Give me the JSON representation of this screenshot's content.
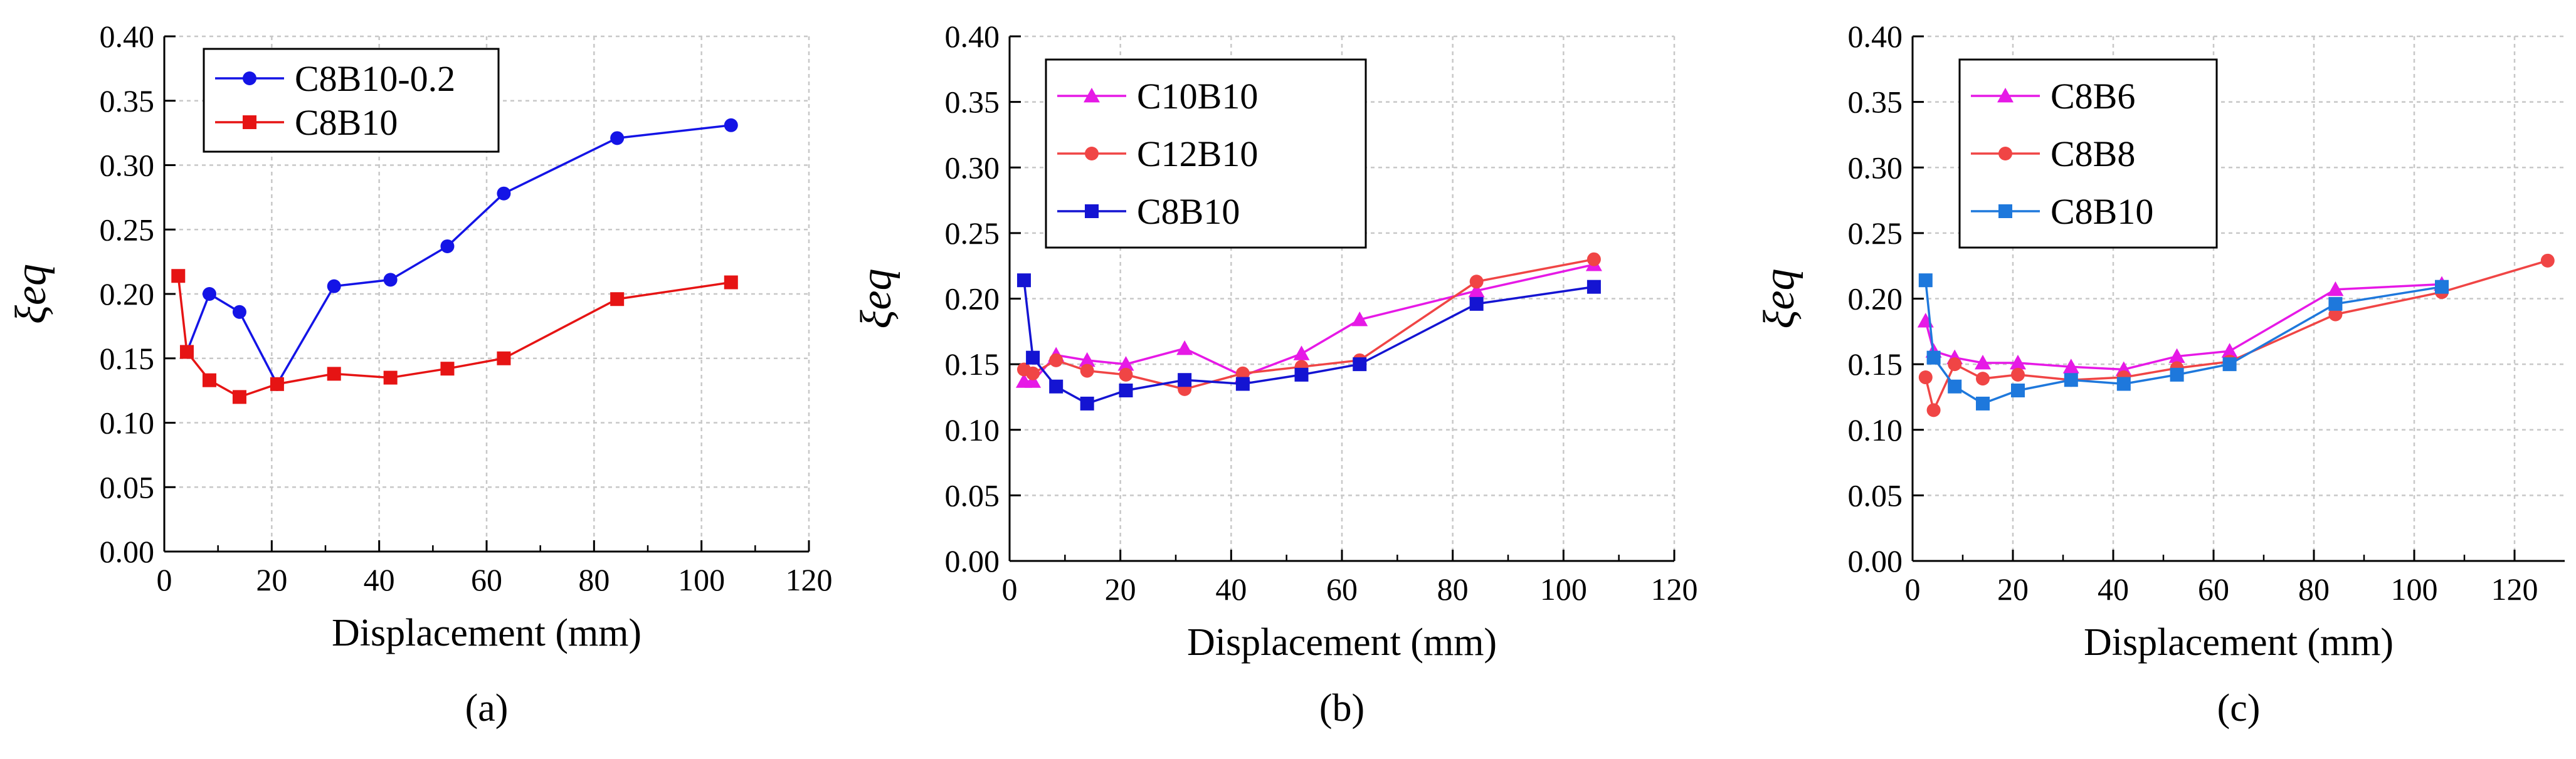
{
  "chart_data": [
    {
      "type": "line",
      "panel_label": "(a)",
      "xlabel": "Displacement (mm)",
      "ylabel": "ξeq",
      "xlim": [
        0,
        120
      ],
      "ylim": [
        0,
        0.4
      ],
      "x_ticks": [
        0,
        20,
        40,
        60,
        80,
        100,
        120
      ],
      "y_ticks": [
        0.0,
        0.05,
        0.1,
        0.15,
        0.2,
        0.25,
        0.3,
        0.35,
        0.4
      ],
      "grid": true,
      "legend_position": "top-left",
      "series": [
        {
          "name": "C8B10-0.2",
          "color": "#1414E6",
          "marker": "circle",
          "x": [
            4.2,
            8.4,
            14.0,
            21.0,
            31.6,
            42.1,
            52.7,
            63.2,
            84.3,
            105.5
          ],
          "y": [
            0.155,
            0.2,
            0.186,
            0.13,
            0.206,
            0.211,
            0.237,
            0.278,
            0.321,
            0.331
          ]
        },
        {
          "name": "C8B10",
          "color": "#E61414",
          "marker": "square",
          "x": [
            2.6,
            4.2,
            8.4,
            14.0,
            21.0,
            31.6,
            42.1,
            52.7,
            63.2,
            84.3,
            105.5
          ],
          "y": [
            0.214,
            0.155,
            0.133,
            0.12,
            0.13,
            0.138,
            0.135,
            0.142,
            0.15,
            0.196,
            0.209
          ]
        }
      ]
    },
    {
      "type": "line",
      "panel_label": "(b)",
      "xlabel": "Displacement (mm)",
      "ylabel": "ξeq",
      "xlim": [
        0,
        120
      ],
      "ylim": [
        0,
        0.4
      ],
      "x_ticks": [
        0,
        20,
        40,
        60,
        80,
        100,
        120
      ],
      "y_ticks": [
        0.0,
        0.05,
        0.1,
        0.15,
        0.2,
        0.25,
        0.3,
        0.35,
        0.4
      ],
      "grid": true,
      "legend_position": "top-left",
      "series": [
        {
          "name": "C10B10",
          "color": "#E619E6",
          "marker": "triangle",
          "x": [
            2.6,
            4.2,
            8.4,
            14.0,
            21.0,
            31.6,
            42.1,
            52.7,
            63.2,
            84.3,
            105.5
          ],
          "y": [
            0.137,
            0.137,
            0.157,
            0.153,
            0.15,
            0.162,
            0.141,
            0.158,
            0.184,
            0.206,
            0.226
          ]
        },
        {
          "name": "C12B10",
          "color": "#F04545",
          "marker": "circle",
          "x": [
            2.6,
            4.2,
            8.4,
            14.0,
            21.0,
            31.6,
            42.1,
            52.7,
            63.2,
            84.3,
            105.5
          ],
          "y": [
            0.146,
            0.143,
            0.153,
            0.145,
            0.142,
            0.131,
            0.143,
            0.148,
            0.153,
            0.213,
            0.23
          ]
        },
        {
          "name": "C8B10",
          "color": "#1414D2",
          "marker": "square",
          "x": [
            2.6,
            4.2,
            8.4,
            14.0,
            21.0,
            31.6,
            42.1,
            52.7,
            63.2,
            84.3,
            105.5
          ],
          "y": [
            0.214,
            0.155,
            0.133,
            0.12,
            0.13,
            0.138,
            0.135,
            0.142,
            0.15,
            0.196,
            0.209
          ]
        }
      ]
    },
    {
      "type": "line",
      "panel_label": "(c)",
      "xlabel": "Displacement (mm)",
      "ylabel": "ξeq",
      "xlim": [
        0,
        130
      ],
      "ylim": [
        0,
        0.4
      ],
      "x_ticks": [
        0,
        20,
        40,
        60,
        80,
        100,
        120
      ],
      "y_ticks": [
        0.0,
        0.05,
        0.1,
        0.15,
        0.2,
        0.25,
        0.3,
        0.35,
        0.4
      ],
      "grid": true,
      "legend_position": "top-left",
      "series": [
        {
          "name": "C8B6",
          "color": "#E619E6",
          "marker": "triangle",
          "x": [
            2.6,
            4.2,
            8.4,
            14.0,
            21.0,
            31.6,
            42.1,
            52.7,
            63.2,
            84.3,
            105.5
          ],
          "y": [
            0.183,
            0.16,
            0.155,
            0.151,
            0.151,
            0.148,
            0.146,
            0.156,
            0.16,
            0.207,
            0.211
          ]
        },
        {
          "name": "C8B8",
          "color": "#F04545",
          "marker": "circle",
          "x": [
            2.6,
            4.2,
            8.4,
            14.0,
            21.0,
            31.6,
            42.1,
            52.7,
            63.2,
            84.3,
            105.5,
            126.6
          ],
          "y": [
            0.14,
            0.115,
            0.15,
            0.139,
            0.142,
            0.138,
            0.14,
            0.147,
            0.152,
            0.188,
            0.205,
            0.229
          ]
        },
        {
          "name": "C8B10",
          "color": "#1E78DC",
          "marker": "square",
          "x": [
            2.6,
            4.2,
            8.4,
            14.0,
            21.0,
            31.6,
            42.1,
            52.7,
            63.2,
            84.3,
            105.5
          ],
          "y": [
            0.214,
            0.155,
            0.133,
            0.12,
            0.13,
            0.138,
            0.135,
            0.142,
            0.15,
            0.196,
            0.209
          ]
        }
      ]
    }
  ]
}
